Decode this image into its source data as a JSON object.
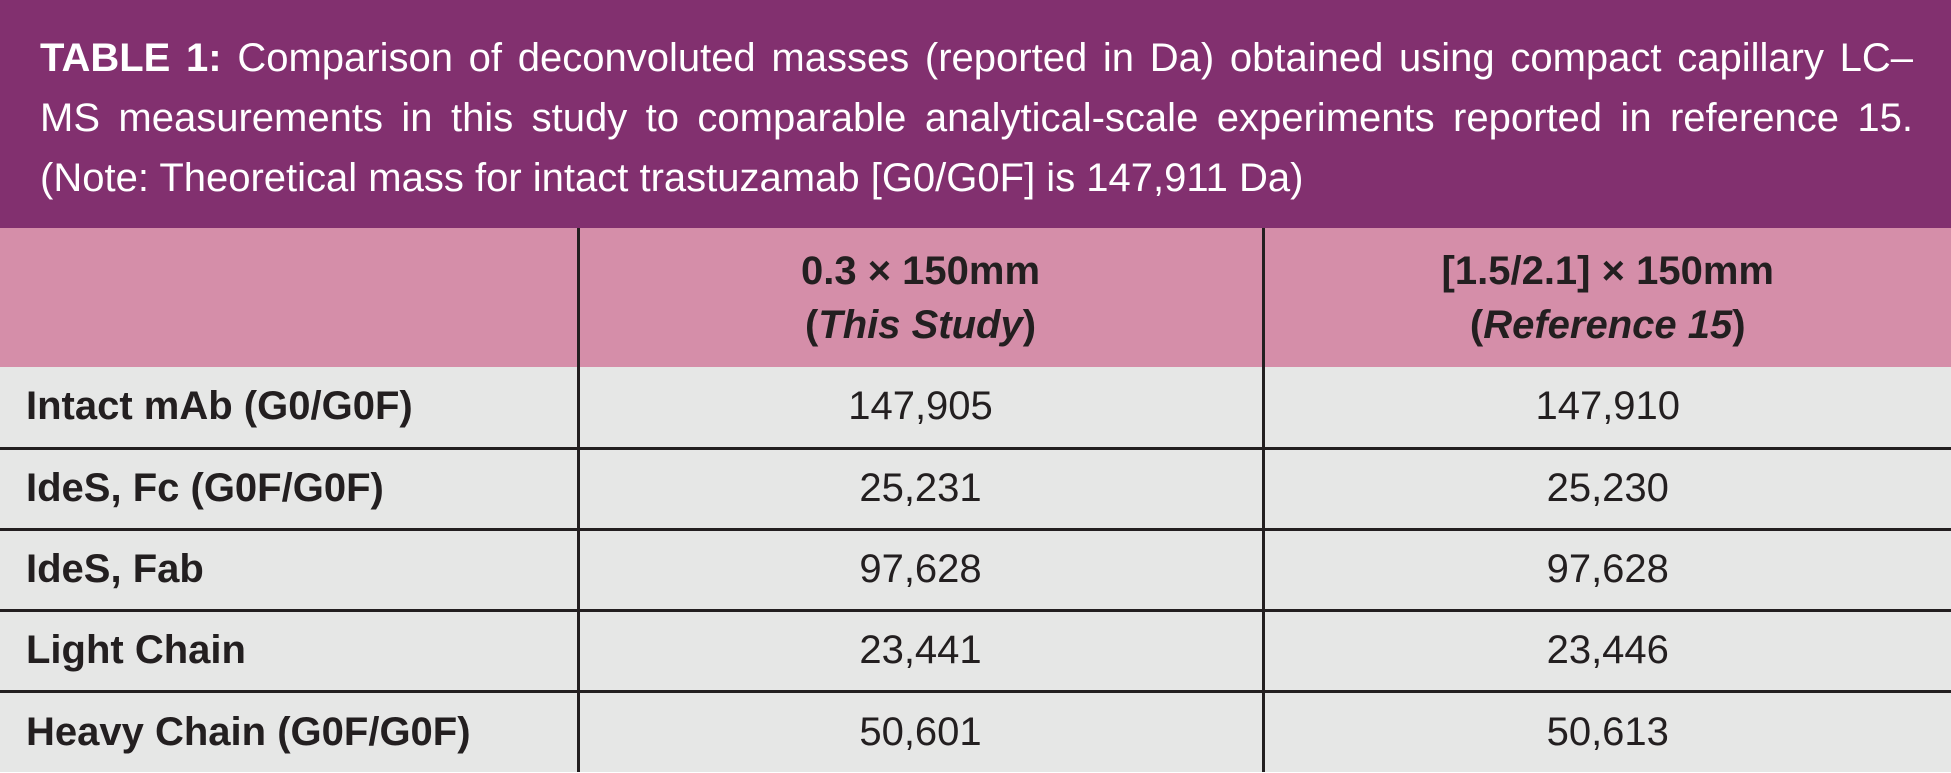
{
  "caption": {
    "lead": "TABLE 1:",
    "text": " Comparison of deconvoluted masses (reported in Da) obtained using compact capillary LC–MS measurements in this study to comparable analytical-scale experiments reported in reference 15. (Note: Theoretical mass for intact trastuzamab [G0/G0F] is 147,911 Da)"
  },
  "table": {
    "columns": [
      {
        "line1": "0.3 × 150mm",
        "open": "(",
        "note": "This Study",
        "close": ")"
      },
      {
        "line1": "[1.5/2.1] × 150mm",
        "open": "(",
        "note": "Reference 15",
        "close": ")"
      }
    ],
    "rows": [
      {
        "label": "Intact mAb (G0/G0F)",
        "values": [
          "147,905",
          "147,910"
        ]
      },
      {
        "label": "IdeS, Fc (G0F/G0F)",
        "values": [
          "25,231",
          "25,230"
        ]
      },
      {
        "label": "IdeS, Fab",
        "values": [
          "97,628",
          "97,628"
        ]
      },
      {
        "label": "Light Chain",
        "values": [
          "23,441",
          "23,446"
        ]
      },
      {
        "label": "Heavy Chain (G0F/G0F)",
        "values": [
          "50,601",
          "50,613"
        ]
      }
    ]
  },
  "colors": {
    "caption_bg": "#82306f",
    "header_bg": "#d58ea9",
    "body_bg": "#e6e7e6",
    "rule": "#231f20"
  }
}
